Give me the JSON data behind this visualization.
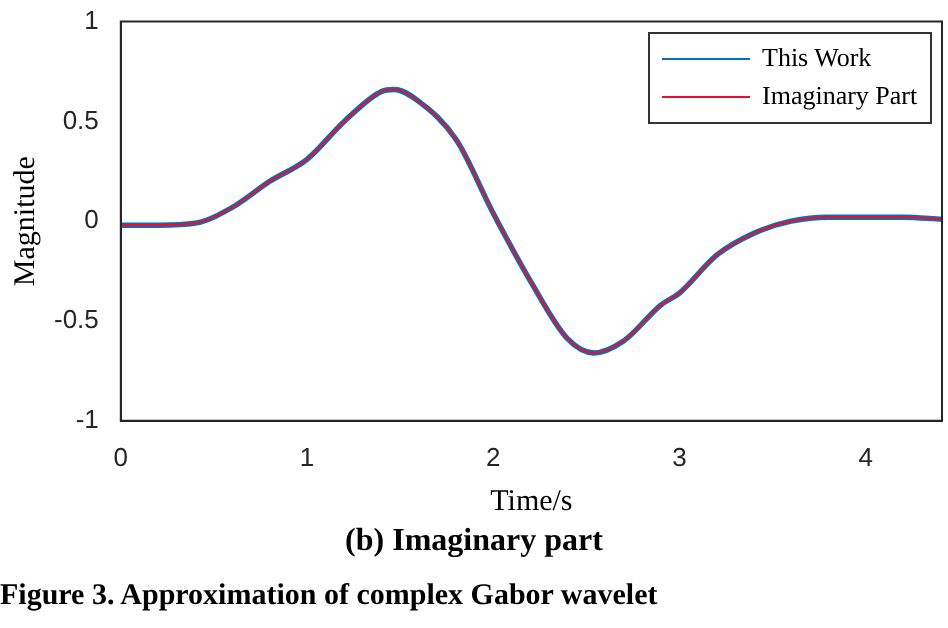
{
  "chart_data": {
    "type": "line",
    "title": "(b) Imaginary part",
    "xlabel": "Time/s",
    "ylabel": "Magnitude",
    "annotations": [
      "Figure 3. Approximation of complex Gabor wavelet"
    ],
    "x": [
      0,
      0.2,
      0.4,
      0.6,
      0.8,
      1.0,
      1.2,
      1.4,
      1.47,
      1.6,
      1.8,
      2.0,
      2.2,
      2.4,
      2.54,
      2.7,
      2.9,
      3.0,
      3.2,
      3.4,
      3.6,
      3.8,
      4.0,
      4.2,
      4.41
    ],
    "series": [
      {
        "name": "This Work",
        "color": "#0072bd",
        "values": [
          -0.02,
          -0.02,
          -0.01,
          0.07,
          0.2,
          0.31,
          0.5,
          0.65,
          0.66,
          0.6,
          0.41,
          0.04,
          -0.3,
          -0.59,
          -0.66,
          -0.6,
          -0.42,
          -0.36,
          -0.17,
          -0.06,
          0.0,
          0.02,
          0.02,
          0.02,
          0.01
        ]
      },
      {
        "name": "Imaginary Part",
        "color": "#e8102e",
        "values": [
          -0.02,
          -0.02,
          -0.01,
          0.07,
          0.2,
          0.31,
          0.5,
          0.65,
          0.66,
          0.6,
          0.41,
          0.04,
          -0.3,
          -0.59,
          -0.66,
          -0.6,
          -0.42,
          -0.36,
          -0.17,
          -0.06,
          0.0,
          0.02,
          0.02,
          0.02,
          0.01
        ]
      }
    ],
    "xlim": [
      0,
      4.41
    ],
    "xticks": [
      0,
      1,
      2,
      3,
      4
    ],
    "ylim": [
      -1,
      1
    ],
    "yticks": [
      -1,
      -0.5,
      0,
      0.5,
      1
    ],
    "grid": false,
    "legend": "top right",
    "marker": "none",
    "line_style": "solid"
  }
}
